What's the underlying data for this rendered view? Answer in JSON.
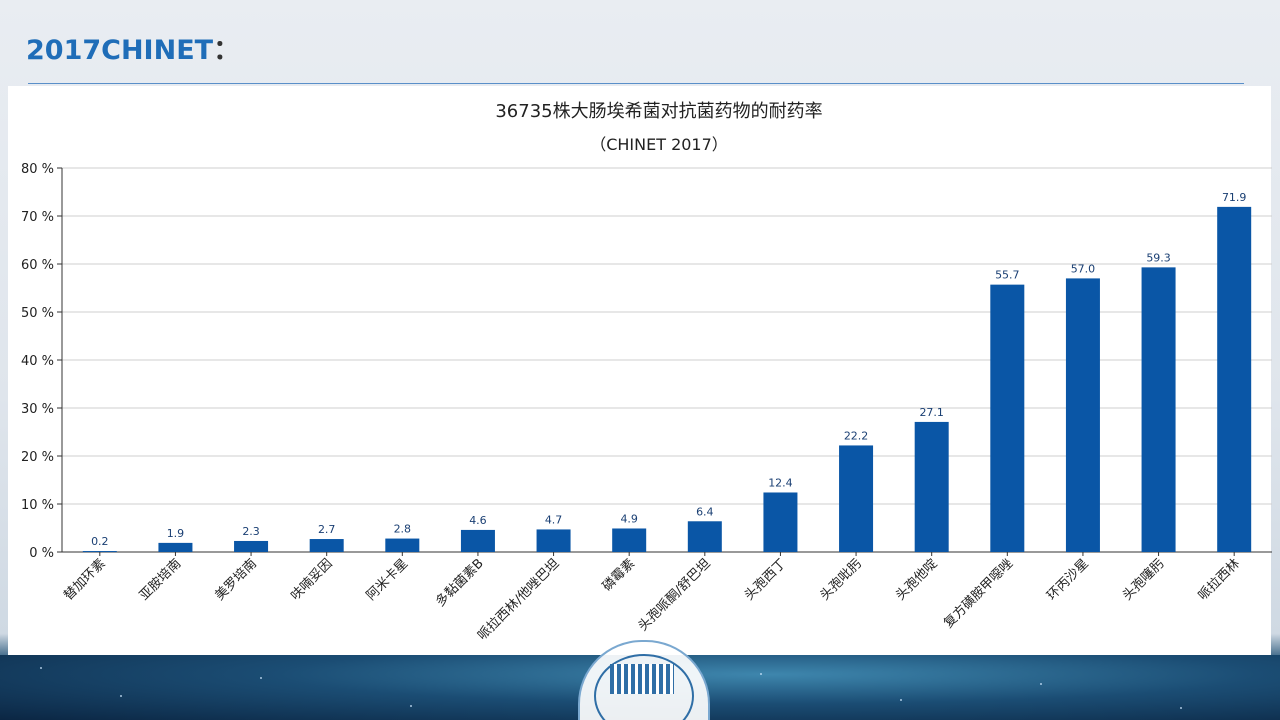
{
  "slide": {
    "heading": "2017CHINET",
    "heading_colon": "："
  },
  "chart_data": {
    "type": "bar",
    "title": "36735株大肠埃希菌对抗菌药物的耐药率",
    "subtitle": "（CHINET 2017）",
    "categories": [
      "替加环素",
      "亚胺培南",
      "美罗培南",
      "呋喃妥因",
      "阿米卡星",
      "多黏菌素B",
      "哌拉西林/他唑巴坦",
      "磷霉素",
      "头孢哌酮/舒巴坦",
      "头孢西丁",
      "头孢吡肟",
      "头孢他啶",
      "复方磺胺甲噁唑",
      "环丙沙星",
      "头孢噻肟",
      "哌拉西林"
    ],
    "values": [
      0.2,
      1.9,
      2.3,
      2.7,
      2.8,
      4.6,
      4.7,
      4.9,
      6.4,
      12.4,
      22.2,
      27.1,
      55.7,
      57.0,
      59.3,
      71.9
    ],
    "value_labels": [
      "0.2",
      "1.9",
      "2.3",
      "2.7",
      "2.8",
      "4.6",
      "4.7",
      "4.9",
      "6.4",
      "12.4",
      "22.2",
      "27.1",
      "55.7",
      "57.0",
      "59.3",
      "71.9"
    ],
    "ylim": [
      0,
      80
    ],
    "yticks": [
      0,
      10,
      20,
      30,
      40,
      50,
      60,
      70,
      80
    ],
    "ytick_labels": [
      "0 %",
      "10 %",
      "20 %",
      "30 %",
      "40 %",
      "50 %",
      "60 %",
      "70 %",
      "80 %"
    ],
    "grid": true,
    "bar_color": "#0a56a6",
    "label_color": "#1a3f73"
  }
}
